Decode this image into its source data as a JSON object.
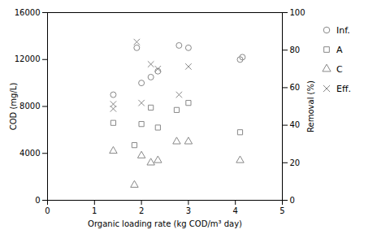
{
  "chart_data": {
    "type": "scatter",
    "xlabel": "Organic loading rate (kg COD/m³ day)",
    "ylabel": "COD (mg/L)",
    "y2label": "Removal (%)",
    "xlim": [
      0,
      5
    ],
    "xticks": [
      0,
      1,
      2,
      3,
      4,
      5
    ],
    "ylim": [
      0,
      16000
    ],
    "yticks": [
      0,
      4000,
      8000,
      12000,
      16000
    ],
    "y2lim": [
      0,
      100
    ],
    "y2ticks": [
      0,
      20,
      40,
      60,
      80,
      100
    ],
    "grid": false,
    "legend": "right",
    "series": [
      {
        "name": "Inf.",
        "color": "#888888",
        "marker": "circle",
        "x": [
          1.4,
          1.9,
          2.0,
          2.2,
          2.35,
          2.8,
          3.0,
          4.1,
          4.15
        ],
        "values": [
          9000,
          13000,
          10000,
          10500,
          11000,
          13200,
          13000,
          12000,
          12200
        ]
      },
      {
        "name": "A",
        "color": "#888888",
        "marker": "square",
        "x": [
          1.4,
          1.85,
          2.0,
          2.2,
          2.35,
          2.75,
          3.0,
          4.1
        ],
        "values": [
          6600,
          4700,
          6500,
          7900,
          6200,
          7700,
          8300,
          5800
        ]
      },
      {
        "name": "C",
        "color": "#888888",
        "marker": "triangle",
        "x": [
          1.4,
          1.85,
          2.0,
          2.2,
          2.35,
          2.75,
          3.0,
          4.1
        ],
        "values": [
          4200,
          1300,
          3800,
          3200,
          3400,
          5000,
          5000,
          3400
        ]
      },
      {
        "name": "Eff.",
        "color": "#888888",
        "marker": "times",
        "x": [
          1.4,
          1.4,
          1.9,
          2.0,
          2.2,
          2.35,
          2.8,
          3.0
        ],
        "values": [
          7800,
          8200,
          13500,
          8300,
          11600,
          11200,
          9000,
          11400
        ]
      }
    ]
  }
}
